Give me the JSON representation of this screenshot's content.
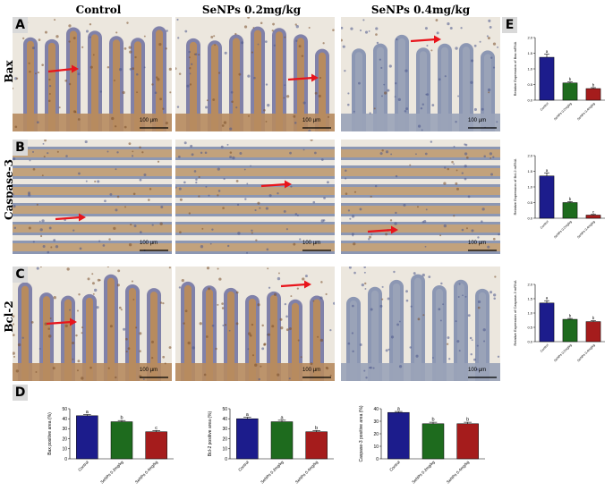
{
  "columns": [
    "Control",
    "SeNPs 0.2mg/kg",
    "SeNPs 0.4mg/kg"
  ],
  "rows": [
    "Bax",
    "Caspase-3",
    "Bcl-2"
  ],
  "panel_letters": [
    "A",
    "B",
    "C",
    "D",
    "E"
  ],
  "scale_bar_label": "100 µm",
  "colors": {
    "control": "#1c1c8c",
    "senp02": "#1e6b1e",
    "senp04": "#a51c1c",
    "arrow": "#e8141b",
    "tissue_brown": "#b58a5e",
    "tissue_blue": "#6e7fa6"
  },
  "chart_data": [
    {
      "id": "D-bax",
      "type": "bar",
      "categories": [
        "Control",
        "SeNPs 0.2mg/kg",
        "SeNPs 0.4mg/kg"
      ],
      "values": [
        43,
        37,
        27
      ],
      "errors": [
        1.2,
        1.2,
        1.2
      ],
      "letters": [
        "a",
        "b",
        "c"
      ],
      "ylabel": "Bax positive area (%)",
      "ylim": [
        0,
        50
      ],
      "yticks": [
        0,
        10,
        20,
        30,
        40,
        50
      ]
    },
    {
      "id": "D-bcl2",
      "type": "bar",
      "categories": [
        "Control",
        "SeNPs 0.2mg/kg",
        "SeNPs 0.4mg/kg"
      ],
      "values": [
        40,
        37,
        27
      ],
      "errors": [
        1.5,
        1.5,
        1.2
      ],
      "letters": [
        "a",
        "a",
        "b"
      ],
      "ylabel": "Bcl-2 positive area (%)",
      "ylim": [
        0,
        50
      ],
      "yticks": [
        0,
        10,
        20,
        30,
        40,
        50
      ]
    },
    {
      "id": "D-casp3",
      "type": "bar",
      "categories": [
        "Control",
        "SeNPs 0.2mg/kg",
        "SeNPs 0.4mg/kg"
      ],
      "values": [
        37,
        28,
        28
      ],
      "errors": [
        0.8,
        1.2,
        1.2
      ],
      "letters": [
        "a",
        "b",
        "b"
      ],
      "ylabel": "Caspase-3 positive area (%)",
      "ylim": [
        0,
        40
      ],
      "yticks": [
        0,
        10,
        20,
        30,
        40
      ]
    },
    {
      "id": "E-bax",
      "type": "bar",
      "categories": [
        "Control",
        "SeNPs 0.2mg/kg",
        "SeNPs 0.4mg/kg"
      ],
      "values": [
        1.37,
        0.55,
        0.37
      ],
      "errors": [
        0.1,
        0.03,
        0.03
      ],
      "letters": [
        "a",
        "b",
        "b"
      ],
      "ylabel": "Relative Expression of Bax mRNA",
      "ylim": [
        0,
        2.0
      ],
      "yticks": [
        0,
        0.5,
        1.0,
        1.5,
        2.0
      ]
    },
    {
      "id": "E-bcl2",
      "type": "bar",
      "categories": [
        "Control",
        "SeNPs 0.2mg/kg",
        "SeNPs 0.4mg/kg"
      ],
      "values": [
        1.35,
        0.5,
        0.1
      ],
      "errors": [
        0.1,
        0.03,
        0.02
      ],
      "letters": [
        "a",
        "b",
        "c"
      ],
      "ylabel": "Relative Expression of Bcl-2 mRNA",
      "ylim": [
        0,
        2.0
      ],
      "yticks": [
        0,
        0.5,
        1.0,
        1.5,
        2.0
      ]
    },
    {
      "id": "E-casp3",
      "type": "bar",
      "categories": [
        "Control",
        "SeNPs 0.2mg/kg",
        "SeNPs 0.4mg/kg"
      ],
      "values": [
        1.35,
        0.78,
        0.7
      ],
      "errors": [
        0.08,
        0.03,
        0.03
      ],
      "letters": [
        "a",
        "b",
        "b"
      ],
      "ylabel": "Relative Expression of Caspase-3 mRNA",
      "ylim": [
        0,
        2.0
      ],
      "yticks": [
        0,
        0.5,
        1.0,
        1.5,
        2.0
      ]
    }
  ]
}
